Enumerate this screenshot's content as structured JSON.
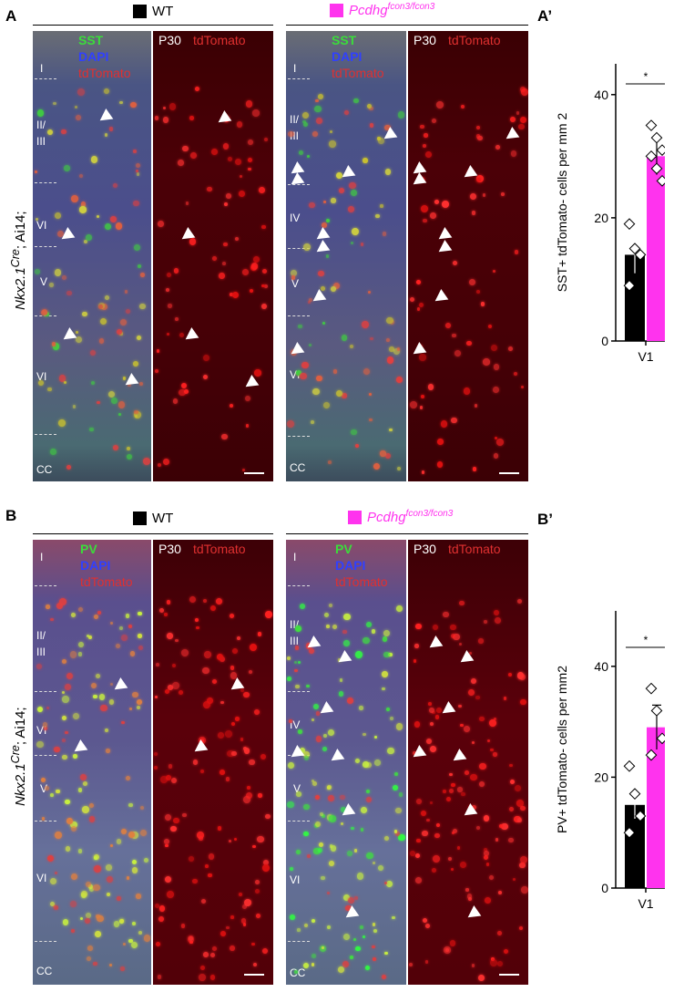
{
  "panels": {
    "A": {
      "label": "A",
      "wt_label": "WT",
      "mut_gene": "Pcdhg",
      "mut_sup": "fcon3/fcon3",
      "side_label_gene": "Nkx2.1",
      "side_label_sup": "Cre",
      "side_label_suffix": "; Ai14;",
      "merge_lines": [
        "SST",
        "DAPI",
        "tdTomato"
      ],
      "red_label_p": "P30",
      "red_label_c": "tdTomato",
      "layers_wt": [
        "I",
        "II/",
        "III",
        "VI",
        "V",
        "VI",
        "CC"
      ],
      "layers_mut": [
        "I",
        "II/",
        "III",
        "IV",
        "V",
        "VI",
        "CC"
      ]
    },
    "B": {
      "label": "B",
      "wt_label": "WT",
      "mut_gene": "Pcdhg",
      "mut_sup": "fcon3/fcon3",
      "side_label_gene": "Nkx2.1",
      "side_label_sup": "Cre",
      "side_label_suffix": "; Ai14;",
      "merge_lines": [
        "PV",
        "DAPI",
        "tdTomato"
      ],
      "red_label_p": "P30",
      "red_label_c": "tdTomato",
      "layers_wt": [
        "I",
        "II/",
        "III",
        "VI",
        "V",
        "VI",
        "CC"
      ],
      "layers_mut": [
        "I",
        "II/",
        "III",
        "IV",
        "V",
        "VI",
        "CC"
      ]
    }
  },
  "colors": {
    "wt": "#000000",
    "mut": "#ff33ee"
  },
  "chart_data": [
    {
      "type": "bar",
      "panel_label": "A’",
      "categories": [
        "V1"
      ],
      "series": [
        {
          "values": [
            14
          ],
          "error": 3,
          "points": [
            19,
            15,
            14,
            9
          ]
        },
        {
          "values": [
            30
          ],
          "error": 3,
          "points": [
            35,
            33,
            31,
            30,
            28,
            26
          ]
        }
      ],
      "ylabel": "SST+ tdTomato- cells per mm 2",
      "ylim": [
        0,
        45
      ],
      "yticks": [
        0,
        20,
        40
      ],
      "significance": "*",
      "xlabel": "V1"
    },
    {
      "type": "bar",
      "panel_label": "B’",
      "categories": [
        "V1"
      ],
      "series": [
        {
          "values": [
            15
          ],
          "error": 2.5,
          "points": [
            22,
            17,
            13,
            10
          ]
        },
        {
          "values": [
            29
          ],
          "error": 4,
          "points": [
            36,
            32,
            27,
            24
          ]
        }
      ],
      "ylabel": "PV+ tdTomato- cells per mm2",
      "ylim": [
        0,
        50
      ],
      "yticks": [
        0,
        20,
        40
      ],
      "significance": "*",
      "xlabel": "V1"
    }
  ]
}
